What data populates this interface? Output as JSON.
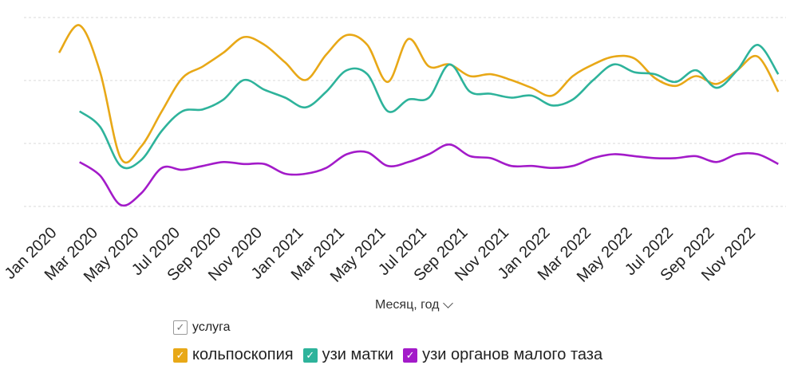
{
  "chart_data": {
    "type": "line",
    "xlabel": "Месяц, год",
    "x_tick_labels": [
      "Jan 2020",
      "Mar 2020",
      "May 2020",
      "Jul 2020",
      "Sep 2020",
      "Nov 2020",
      "Jan 2021",
      "Mar 2021",
      "May 2021",
      "Jul 2021",
      "Sep 2021",
      "Nov 2021",
      "Jan 2022",
      "Mar 2022",
      "May 2022",
      "Jul 2022",
      "Sep 2022",
      "Nov 2022"
    ],
    "months": [
      "Jan 2020",
      "Feb 2020",
      "Mar 2020",
      "Apr 2020",
      "May 2020",
      "Jun 2020",
      "Jul 2020",
      "Aug 2020",
      "Sep 2020",
      "Oct 2020",
      "Nov 2020",
      "Dec 2020",
      "Jan 2021",
      "Feb 2021",
      "Mar 2021",
      "Apr 2021",
      "May 2021",
      "Jun 2021",
      "Jul 2021",
      "Aug 2021",
      "Sep 2021",
      "Oct 2021",
      "Nov 2021",
      "Dec 2021",
      "Jan 2022",
      "Feb 2022",
      "Mar 2022",
      "Apr 2022",
      "May 2022",
      "Jun 2022",
      "Jul 2022",
      "Aug 2022",
      "Sep 2022",
      "Oct 2022",
      "Nov 2022",
      "Dec 2022"
    ],
    "y_range": [
      0,
      100
    ],
    "grid": "horizontal dashed",
    "series": [
      {
        "name": "кольпоскопия",
        "color": "#E8A817",
        "values": [
          82,
          96,
          72,
          28,
          34,
          52,
          69,
          75,
          82,
          90,
          86,
          77,
          68,
          81,
          91,
          86,
          67,
          89,
          75,
          76,
          70,
          71,
          68,
          64,
          60,
          70,
          76,
          80,
          79,
          69,
          65,
          70,
          66,
          73,
          80,
          62
        ]
      },
      {
        "name": "узи матки",
        "color": "#2EB39B",
        "values": [
          null,
          52,
          44,
          24,
          27,
          42,
          52,
          53,
          58,
          68,
          63,
          59,
          54,
          62,
          73,
          71,
          52,
          58,
          59,
          76,
          62,
          61,
          59,
          60,
          55,
          58,
          68,
          76,
          72,
          71,
          67,
          73,
          64,
          73,
          86,
          71
        ]
      },
      {
        "name": "узи органов малого таза",
        "color": "#A31BC9",
        "values": [
          null,
          26,
          19,
          4,
          10,
          23,
          22,
          24,
          26,
          25,
          25,
          20,
          20,
          23,
          30,
          31,
          24,
          26,
          30,
          35,
          29,
          28,
          24,
          24,
          23,
          24,
          28,
          30,
          29,
          28,
          28,
          29,
          26,
          30,
          30,
          25
        ]
      }
    ],
    "legend_title": "услуга",
    "legend_position": "bottom"
  },
  "ui": {
    "axis_title": "Месяц, год"
  }
}
